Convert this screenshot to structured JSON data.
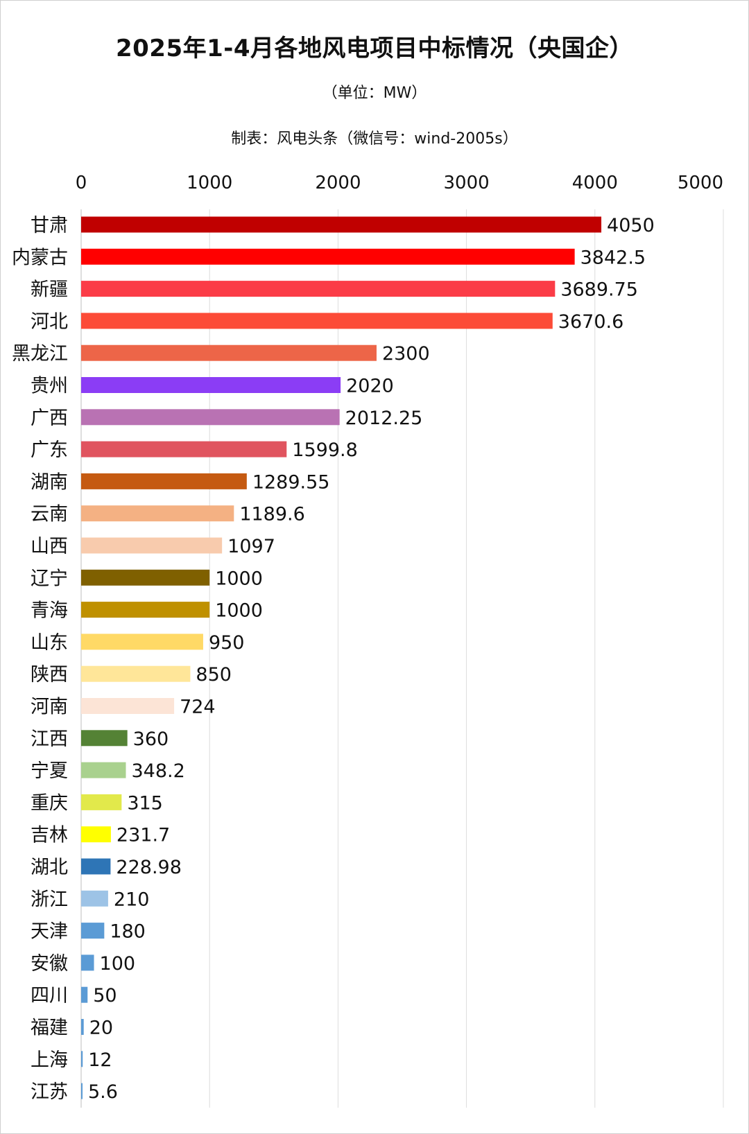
{
  "chart_data": {
    "type": "bar",
    "orientation": "horizontal",
    "title": "2025年1-4月各地风电项目中标情况（央国企）",
    "subtitle": "（单位：MW）",
    "credit": "制表：风电头条（微信号：wind-2005s）",
    "xlim": [
      0,
      5000
    ],
    "x_ticks": [
      "0",
      "1000",
      "2000",
      "3000",
      "4000",
      "5000"
    ],
    "x_tick_values": [
      0,
      1000,
      2000,
      3000,
      4000,
      5000
    ],
    "grid": "vertical",
    "legend": "none",
    "categories": [
      "甘肃",
      "内蒙古",
      "新疆",
      "河北",
      "黑龙江",
      "贵州",
      "广西",
      "广东",
      "湖南",
      "云南",
      "山西",
      "辽宁",
      "青海",
      "山东",
      "陕西",
      "河南",
      "江西",
      "宁夏",
      "重庆",
      "吉林",
      "湖北",
      "浙江",
      "天津",
      "安徽",
      "四川",
      "福建",
      "上海",
      "江苏"
    ],
    "values": [
      4050,
      3842.5,
      3689.75,
      3670.6,
      2300,
      2020,
      2012.25,
      1599.8,
      1289.55,
      1189.6,
      1097,
      1000,
      1000,
      950,
      850,
      724,
      360,
      348.2,
      315,
      231.7,
      228.98,
      210,
      180,
      100,
      50,
      20,
      12,
      5.6
    ],
    "value_labels": [
      "4050",
      "3842.5",
      "3689.75",
      "3670.6",
      "2300",
      "2020",
      "2012.25",
      "1599.8",
      "1289.55",
      "1189.6",
      "1097",
      "1000",
      "1000",
      "950",
      "850",
      "724",
      "360",
      "348.2",
      "315",
      "231.7",
      "228.98",
      "210",
      "180",
      "100",
      "50",
      "20",
      "12",
      "5.6"
    ],
    "colors": [
      "#c00000",
      "#ff0000",
      "#fb3c47",
      "#fc4b37",
      "#ed6548",
      "#8b3df5",
      "#b972b3",
      "#e0545f",
      "#c55a11",
      "#f4b183",
      "#f8cbad",
      "#7f6000",
      "#bf9000",
      "#ffd966",
      "#ffe699",
      "#fce4d6",
      "#548235",
      "#a9d18e",
      "#e2e94b",
      "#ffff00",
      "#2e75b6",
      "#9dc3e6",
      "#5b9bd5",
      "#5b9bd5",
      "#5b9bd5",
      "#5b9bd5",
      "#5b9bd5",
      "#5b9bd5"
    ]
  }
}
